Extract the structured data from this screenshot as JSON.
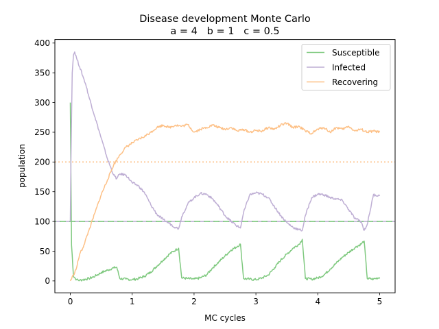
{
  "chart_data": {
    "type": "line",
    "title": "Disease development Monte Carlo",
    "subtitle": "a = 4   b = 1   c = 0.5",
    "xlabel": "MC cycles",
    "ylabel": "population",
    "xlim": [
      -0.25,
      5.25
    ],
    "ylim": [
      -20,
      406
    ],
    "xticks": [
      0,
      1,
      2,
      3,
      4,
      5
    ],
    "yticks": [
      0,
      50,
      100,
      150,
      200,
      250,
      300,
      350,
      400
    ],
    "grid": false,
    "legend_position": "top-right",
    "series": [
      {
        "name": "Susceptible",
        "color": "#7fc97f",
        "x": [
          0,
          0.02,
          0.05,
          0.1,
          0.15,
          0.2,
          0.3,
          0.4,
          0.5,
          0.6,
          0.7,
          0.75,
          0.8,
          0.9,
          1.0,
          1.1,
          1.2,
          1.3,
          1.4,
          1.5,
          1.6,
          1.7,
          1.75,
          1.8,
          1.9,
          2.0,
          2.1,
          2.2,
          2.3,
          2.4,
          2.5,
          2.6,
          2.7,
          2.75,
          2.8,
          2.9,
          3.0,
          3.1,
          3.2,
          3.3,
          3.4,
          3.5,
          3.6,
          3.7,
          3.75,
          3.8,
          3.9,
          4.0,
          4.1,
          4.2,
          4.3,
          4.4,
          4.5,
          4.6,
          4.7,
          4.75,
          4.8,
          4.9,
          5.0
        ],
        "values": [
          300,
          60,
          8,
          2,
          1,
          2,
          4,
          8,
          14,
          18,
          22,
          23,
          4,
          3,
          2,
          4,
          8,
          15,
          25,
          35,
          45,
          52,
          55,
          5,
          4,
          3,
          5,
          10,
          22,
          32,
          42,
          52,
          58,
          62,
          4,
          3,
          2,
          5,
          10,
          22,
          35,
          45,
          55,
          62,
          70,
          4,
          3,
          5,
          10,
          20,
          30,
          40,
          48,
          56,
          62,
          67,
          4,
          3,
          6
        ]
      },
      {
        "name": "Infected",
        "color": "#beaed4",
        "x": [
          0,
          0.01,
          0.03,
          0.05,
          0.07,
          0.1,
          0.15,
          0.2,
          0.25,
          0.3,
          0.4,
          0.5,
          0.6,
          0.7,
          0.75,
          0.8,
          0.9,
          1.0,
          1.1,
          1.2,
          1.3,
          1.4,
          1.5,
          1.6,
          1.7,
          1.75,
          1.8,
          1.9,
          2.0,
          2.1,
          2.2,
          2.3,
          2.4,
          2.5,
          2.6,
          2.7,
          2.75,
          2.8,
          2.9,
          3.0,
          3.1,
          3.2,
          3.3,
          3.4,
          3.5,
          3.6,
          3.7,
          3.75,
          3.8,
          3.9,
          4.0,
          4.1,
          4.2,
          4.3,
          4.4,
          4.5,
          4.6,
          4.7,
          4.75,
          4.8,
          4.9,
          5.0
        ],
        "values": [
          100,
          200,
          350,
          380,
          385,
          375,
          360,
          345,
          330,
          310,
          275,
          240,
          205,
          178,
          172,
          180,
          178,
          165,
          160,
          148,
          128,
          112,
          103,
          97,
          90,
          88,
          108,
          130,
          140,
          147,
          146,
          138,
          125,
          110,
          100,
          92,
          89,
          115,
          145,
          148,
          146,
          140,
          125,
          110,
          98,
          90,
          86,
          85,
          110,
          140,
          146,
          145,
          140,
          138,
          135,
          120,
          105,
          100,
          85,
          95,
          145,
          143
        ]
      },
      {
        "name": "Recovering",
        "color": "#fdc086",
        "x": [
          0,
          0.05,
          0.1,
          0.15,
          0.2,
          0.3,
          0.4,
          0.5,
          0.6,
          0.7,
          0.8,
          0.9,
          1.0,
          1.1,
          1.2,
          1.3,
          1.4,
          1.5,
          1.6,
          1.7,
          1.8,
          1.9,
          2.0,
          2.1,
          2.2,
          2.3,
          2.4,
          2.5,
          2.6,
          2.7,
          2.8,
          2.9,
          3.0,
          3.1,
          3.2,
          3.3,
          3.4,
          3.5,
          3.6,
          3.7,
          3.8,
          3.9,
          4.0,
          4.1,
          4.2,
          4.3,
          4.4,
          4.5,
          4.6,
          4.7,
          4.8,
          4.9,
          5.0
        ],
        "values": [
          0,
          10,
          22,
          45,
          55,
          85,
          115,
          145,
          170,
          195,
          212,
          225,
          232,
          238,
          243,
          250,
          258,
          262,
          258,
          262,
          260,
          263,
          250,
          255,
          258,
          262,
          258,
          255,
          258,
          252,
          255,
          250,
          253,
          252,
          258,
          255,
          262,
          265,
          258,
          260,
          252,
          248,
          255,
          258,
          250,
          258,
          255,
          260,
          252,
          255,
          250,
          252,
          250
        ]
      }
    ],
    "reference_lines": [
      {
        "value": 200,
        "color": "#fdc086",
        "style": "dotted"
      },
      {
        "value": 100,
        "color": "#beaed4",
        "style": "dashed"
      },
      {
        "value": 100,
        "color": "#7fc97f",
        "style": "dashed"
      }
    ]
  }
}
